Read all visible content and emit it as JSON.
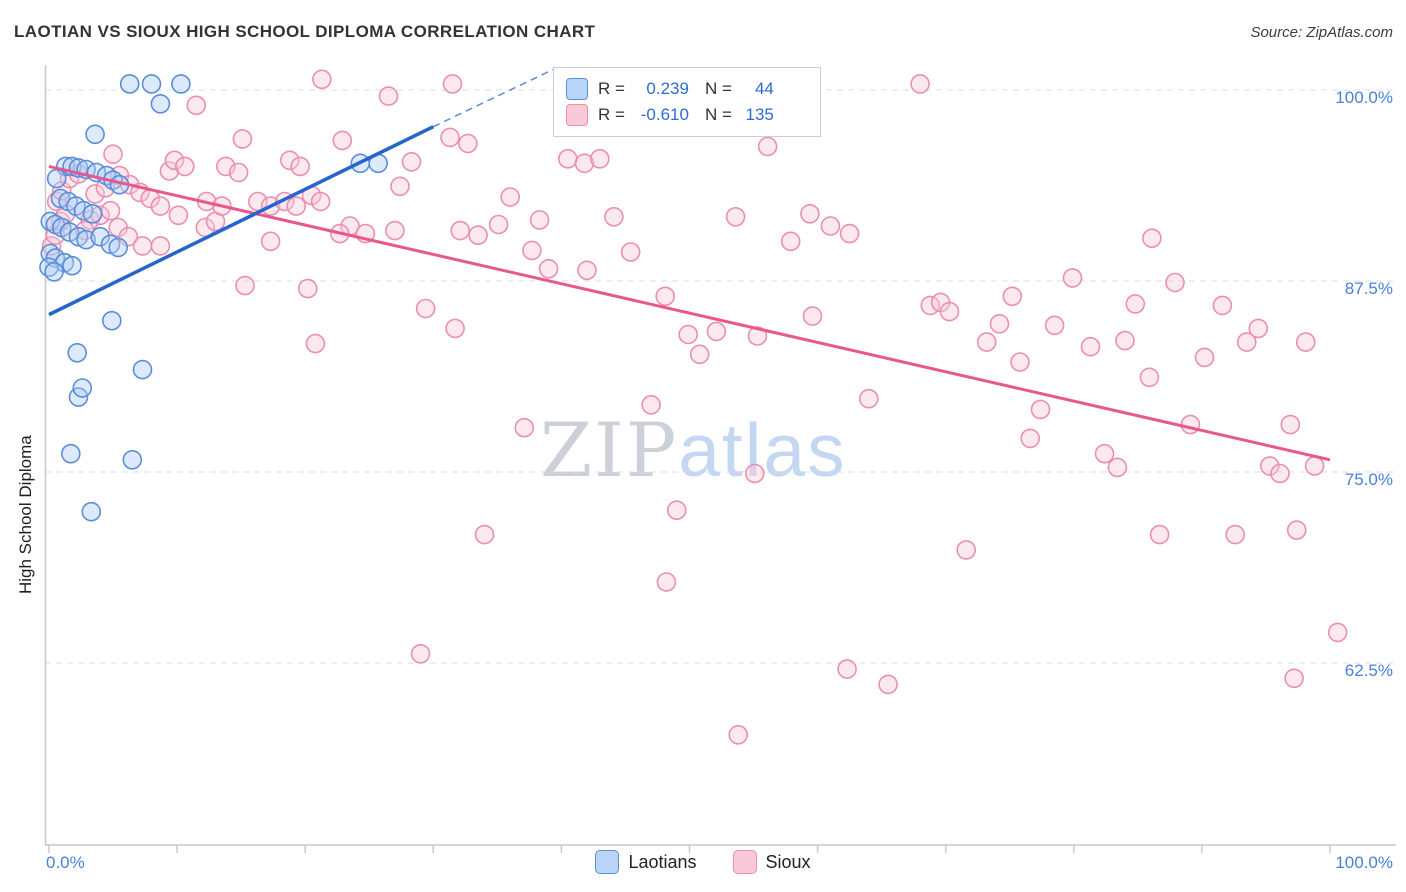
{
  "header": {
    "title": "LAOTIAN VS SIOUX HIGH SCHOOL DIPLOMA CORRELATION CHART",
    "source": "Source: ZipAtlas.com"
  },
  "ui": {
    "r_label": "R =",
    "n_label": "N ="
  },
  "watermark": {
    "part1": "ZIP",
    "part2": "atlas"
  },
  "chart_data": {
    "type": "scatter",
    "title": "LAOTIAN VS SIOUX HIGH SCHOOL DIPLOMA CORRELATION CHART",
    "xlabel": "",
    "ylabel": "High School Diploma",
    "xlim": [
      0,
      105
    ],
    "ylim": [
      51,
      102
    ],
    "grid": "horizontal-dashed",
    "legend_position": "bottom-center",
    "x_axis_labels": [
      "0.0%",
      "100.0%"
    ],
    "y_gridlines": [
      100,
      87.5,
      75,
      62.5
    ],
    "y_tick_labels": [
      "100.0%",
      "87.5%",
      "75.0%",
      "62.5%"
    ],
    "series": [
      {
        "name": "Laotians",
        "r": 0.239,
        "n": 44,
        "r_display": "0.239",
        "n_display": "44",
        "stroke_color": "#5b8dd9",
        "fill_color": "#aecdf5",
        "line_color": "#2565cc",
        "trend": {
          "x1": 0,
          "y1": 85.3,
          "x2": 30,
          "y2": 97.6
        },
        "trend_dashed": {
          "x1": 30,
          "y1": 97.6,
          "x2": 39.5,
          "y2": 101.4
        },
        "points": [
          [
            0.1,
            91.4
          ],
          [
            0.5,
            91.2
          ],
          [
            1.0,
            91.0
          ],
          [
            1.6,
            90.7
          ],
          [
            2.3,
            90.4
          ],
          [
            2.9,
            90.2
          ],
          [
            0.1,
            89.3
          ],
          [
            0.5,
            89.0
          ],
          [
            1.2,
            88.7
          ],
          [
            1.8,
            88.5
          ],
          [
            0.0,
            88.4
          ],
          [
            0.4,
            88.1
          ],
          [
            0.9,
            92.9
          ],
          [
            1.5,
            92.7
          ],
          [
            2.1,
            92.4
          ],
          [
            2.7,
            92.1
          ],
          [
            3.4,
            91.9
          ],
          [
            4.0,
            90.4
          ],
          [
            4.8,
            89.9
          ],
          [
            5.4,
            89.7
          ],
          [
            1.3,
            95.0
          ],
          [
            1.8,
            95.0
          ],
          [
            2.3,
            94.9
          ],
          [
            2.9,
            94.8
          ],
          [
            3.7,
            94.6
          ],
          [
            4.5,
            94.4
          ],
          [
            5.0,
            94.1
          ],
          [
            5.5,
            93.8
          ],
          [
            0.6,
            94.2
          ],
          [
            3.6,
            97.1
          ],
          [
            8.7,
            99.1
          ],
          [
            6.3,
            100.4
          ],
          [
            8.0,
            100.4
          ],
          [
            10.3,
            100.4
          ],
          [
            4.9,
            84.9
          ],
          [
            2.2,
            82.8
          ],
          [
            7.3,
            81.7
          ],
          [
            2.3,
            79.9
          ],
          [
            1.7,
            76.2
          ],
          [
            6.5,
            75.8
          ],
          [
            3.3,
            72.4
          ],
          [
            24.3,
            95.2
          ],
          [
            25.7,
            95.2
          ],
          [
            2.6,
            80.5
          ]
        ]
      },
      {
        "name": "Sioux",
        "r": -0.61,
        "n": 135,
        "r_display": "-0.610",
        "n_display": "135",
        "stroke_color": "#ea8fb0",
        "fill_color": "#f9c9da",
        "line_color": "#e8578d",
        "trend": {
          "x1": 0,
          "y1": 95.0,
          "x2": 100,
          "y2": 75.8
        },
        "points": [
          [
            0.2,
            89.8
          ],
          [
            0.5,
            90.5
          ],
          [
            0.9,
            91.4
          ],
          [
            1.3,
            91.9
          ],
          [
            0.6,
            92.7
          ],
          [
            1.0,
            93.4
          ],
          [
            1.6,
            94.2
          ],
          [
            2.3,
            94.5
          ],
          [
            3.2,
            91.5
          ],
          [
            4.0,
            91.8
          ],
          [
            4.8,
            92.1
          ],
          [
            3.6,
            93.2
          ],
          [
            4.4,
            93.6
          ],
          [
            2.8,
            90.8
          ],
          [
            5.5,
            94.4
          ],
          [
            6.3,
            93.8
          ],
          [
            7.1,
            93.3
          ],
          [
            7.9,
            92.9
          ],
          [
            8.7,
            92.4
          ],
          [
            5.4,
            91.0
          ],
          [
            6.2,
            90.4
          ],
          [
            7.3,
            89.8
          ],
          [
            8.7,
            89.8
          ],
          [
            9.4,
            94.7
          ],
          [
            9.8,
            95.4
          ],
          [
            5.0,
            95.8
          ],
          [
            10.6,
            95.0
          ],
          [
            10.1,
            91.8
          ],
          [
            11.5,
            99.0
          ],
          [
            12.2,
            91.0
          ],
          [
            13.0,
            91.4
          ],
          [
            13.8,
            95.0
          ],
          [
            14.8,
            94.6
          ],
          [
            12.3,
            92.7
          ],
          [
            13.5,
            92.4
          ],
          [
            15.1,
            96.8
          ],
          [
            16.3,
            92.7
          ],
          [
            17.3,
            92.4
          ],
          [
            18.4,
            92.7
          ],
          [
            19.3,
            92.4
          ],
          [
            17.3,
            90.1
          ],
          [
            15.3,
            87.2
          ],
          [
            18.8,
            95.4
          ],
          [
            19.6,
            95.0
          ],
          [
            20.2,
            87.0
          ],
          [
            20.5,
            93.1
          ],
          [
            21.2,
            92.7
          ],
          [
            22.9,
            96.7
          ],
          [
            21.3,
            100.7
          ],
          [
            26.5,
            99.6
          ],
          [
            23.5,
            91.1
          ],
          [
            22.7,
            90.6
          ],
          [
            24.7,
            90.6
          ],
          [
            20.8,
            83.4
          ],
          [
            27.4,
            93.7
          ],
          [
            28.3,
            95.3
          ],
          [
            27.0,
            90.8
          ],
          [
            29.4,
            85.7
          ],
          [
            29.0,
            63.1
          ],
          [
            31.5,
            100.4
          ],
          [
            31.3,
            96.9
          ],
          [
            32.7,
            96.5
          ],
          [
            32.1,
            90.8
          ],
          [
            33.5,
            90.5
          ],
          [
            35.1,
            91.2
          ],
          [
            31.7,
            84.4
          ],
          [
            34.0,
            70.9
          ],
          [
            37.1,
            77.9
          ],
          [
            37.7,
            89.5
          ],
          [
            38.3,
            91.5
          ],
          [
            36.0,
            93.0
          ],
          [
            39.0,
            88.3
          ],
          [
            40.5,
            95.5
          ],
          [
            41.8,
            95.2
          ],
          [
            43.0,
            95.5
          ],
          [
            44.1,
            91.7
          ],
          [
            45.4,
            89.4
          ],
          [
            46.9,
            100.4
          ],
          [
            48.1,
            86.5
          ],
          [
            48.2,
            67.8
          ],
          [
            49.9,
            84.0
          ],
          [
            42.0,
            88.2
          ],
          [
            47.0,
            79.4
          ],
          [
            49.0,
            72.5
          ],
          [
            50.8,
            82.7
          ],
          [
            52.1,
            84.2
          ],
          [
            53.6,
            91.7
          ],
          [
            55.3,
            83.9
          ],
          [
            56.1,
            96.3
          ],
          [
            57.9,
            90.1
          ],
          [
            59.4,
            91.9
          ],
          [
            53.8,
            57.8
          ],
          [
            55.1,
            74.9
          ],
          [
            97.2,
            61.5
          ],
          [
            59.6,
            85.2
          ],
          [
            61.0,
            91.1
          ],
          [
            62.5,
            90.6
          ],
          [
            62.3,
            62.1
          ],
          [
            65.5,
            61.1
          ],
          [
            68.0,
            100.4
          ],
          [
            68.8,
            85.9
          ],
          [
            69.6,
            86.1
          ],
          [
            64.0,
            79.8
          ],
          [
            100.6,
            64.5
          ],
          [
            70.3,
            85.5
          ],
          [
            71.6,
            69.9
          ],
          [
            73.2,
            83.5
          ],
          [
            74.2,
            84.7
          ],
          [
            75.2,
            86.5
          ],
          [
            76.6,
            77.2
          ],
          [
            77.4,
            79.1
          ],
          [
            78.5,
            84.6
          ],
          [
            79.9,
            87.7
          ],
          [
            75.8,
            82.2
          ],
          [
            81.3,
            83.2
          ],
          [
            82.4,
            76.2
          ],
          [
            83.4,
            75.3
          ],
          [
            84.8,
            86.0
          ],
          [
            85.9,
            81.2
          ],
          [
            86.7,
            70.9
          ],
          [
            87.9,
            87.4
          ],
          [
            89.1,
            78.1
          ],
          [
            86.1,
            90.3
          ],
          [
            84.0,
            83.6
          ],
          [
            90.2,
            82.5
          ],
          [
            91.6,
            85.9
          ],
          [
            92.6,
            70.9
          ],
          [
            93.5,
            83.5
          ],
          [
            94.4,
            84.4
          ],
          [
            95.3,
            75.4
          ],
          [
            96.1,
            74.9
          ],
          [
            96.9,
            78.1
          ],
          [
            97.4,
            71.2
          ],
          [
            98.1,
            83.5
          ],
          [
            98.8,
            75.4
          ]
        ]
      }
    ]
  }
}
